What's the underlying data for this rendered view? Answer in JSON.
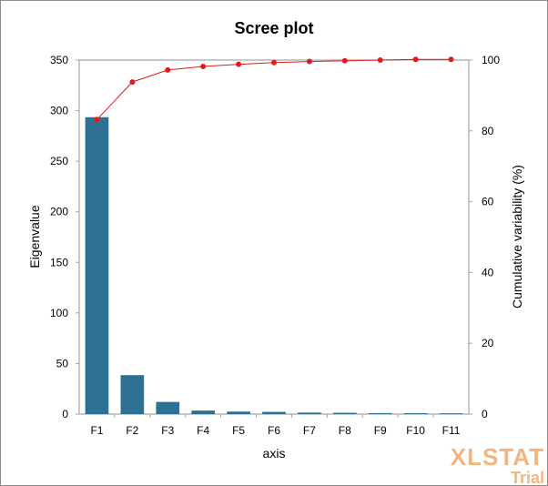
{
  "chart_data": {
    "type": "bar",
    "title": "Scree plot",
    "xlabel": "axis",
    "ylabel": "Eigenvalue",
    "y2label": "Cumulative  variability  (%)",
    "categories": [
      "F1",
      "F2",
      "F3",
      "F4",
      "F5",
      "F6",
      "F7",
      "F8",
      "F9",
      "F10",
      "F11"
    ],
    "ylim": [
      0,
      350
    ],
    "yticks": [
      0,
      50,
      100,
      150,
      200,
      250,
      300,
      350
    ],
    "y2lim": [
      0,
      100
    ],
    "y2ticks": [
      0,
      20,
      40,
      60,
      80,
      100
    ],
    "series": [
      {
        "name": "Eigenvalue",
        "type": "bar",
        "axis": "left",
        "color": "#2e7092",
        "values": [
          293.5,
          38.5,
          12.0,
          3.5,
          2.5,
          2.2,
          1.5,
          1.3,
          1.0,
          0.9,
          0.8
        ]
      },
      {
        "name": "Cumulative variability (%)",
        "type": "line",
        "axis": "right",
        "color": "#e31a1c",
        "values": [
          83.2,
          93.8,
          97.2,
          98.2,
          98.8,
          99.3,
          99.6,
          99.8,
          100.0,
          100.2,
          100.2
        ]
      }
    ],
    "grid": false
  },
  "watermark": {
    "brand": "XLSTAT",
    "edition": "Trial"
  }
}
